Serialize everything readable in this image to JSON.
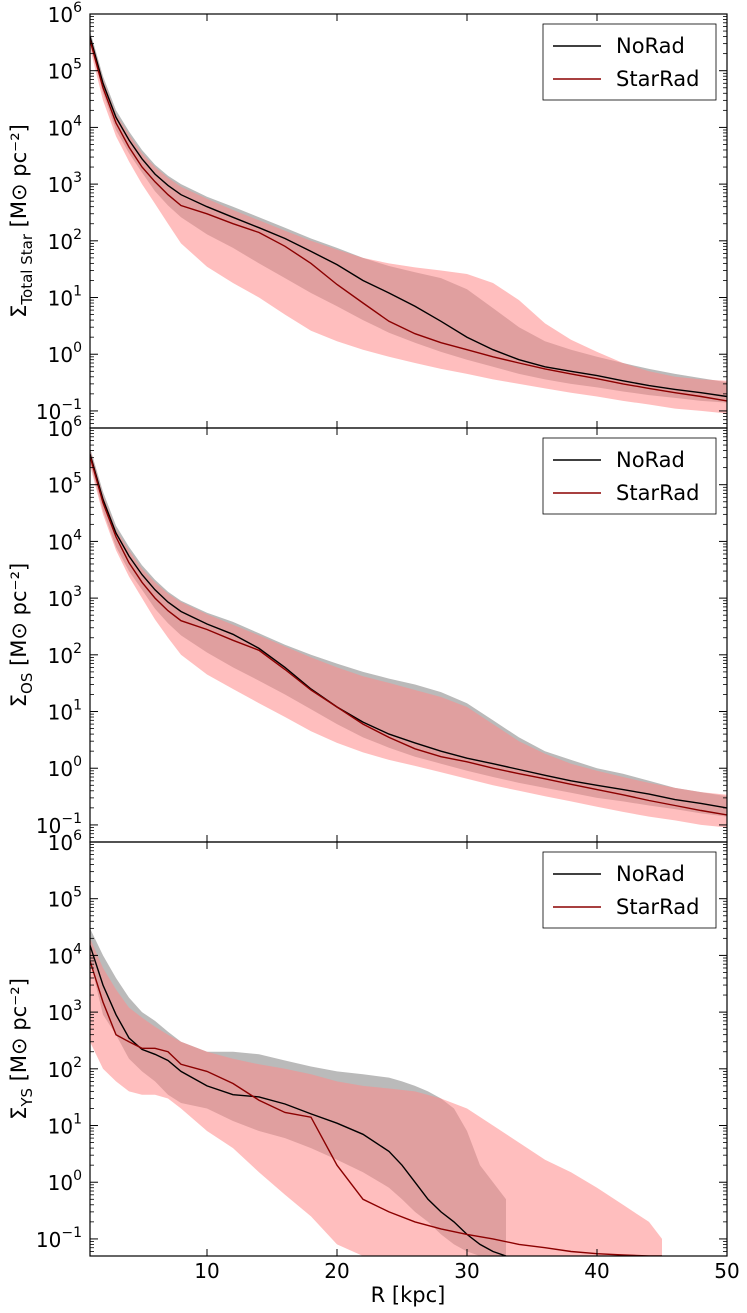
{
  "figure": {
    "xlabel": "R [kpc]"
  },
  "chart_data": [
    {
      "type": "line",
      "panel": "total",
      "ylabel_prefix": "Σ",
      "ylabel_subscript": "Total Star",
      "ylabel_unit": "[M⊙ pc⁻²]",
      "xlim": [
        1,
        50
      ],
      "ylim": [
        0.05,
        1000000
      ],
      "yscale": "log",
      "x_ticks": [
        10,
        20,
        30,
        40,
        50
      ],
      "y_ticks": [
        {
          "base": "10",
          "exp": "−1",
          "value": 0.1
        },
        {
          "base": "10",
          "exp": "0",
          "value": 1
        },
        {
          "base": "10",
          "exp": "1",
          "value": 10
        },
        {
          "base": "10",
          "exp": "2",
          "value": 100
        },
        {
          "base": "10",
          "exp": "3",
          "value": 1000
        },
        {
          "base": "10",
          "exp": "4",
          "value": 10000
        },
        {
          "base": "10",
          "exp": "5",
          "value": 100000
        },
        {
          "base": "10",
          "exp": "6",
          "value": 1000000
        }
      ],
      "legend": [
        {
          "label": "NoRad",
          "color": "#000000"
        },
        {
          "label": "StarRad",
          "color": "#8b0000"
        }
      ],
      "legend_position": "top-right",
      "series": [
        {
          "name": "NoRad",
          "color": "#000000",
          "band_color": "#a9a9a9",
          "x": [
            1,
            2,
            3,
            4,
            5,
            6,
            7,
            8,
            10,
            12,
            14,
            16,
            18,
            20,
            22,
            24,
            26,
            28,
            30,
            32,
            34,
            36,
            38,
            40,
            42,
            44,
            46,
            48,
            50
          ],
          "y": [
            400000,
            60000,
            15000,
            6000,
            2800,
            1500,
            950,
            650,
            400,
            260,
            170,
            110,
            65,
            38,
            20,
            12,
            7,
            3.8,
            2,
            1.2,
            0.8,
            0.6,
            0.5,
            0.42,
            0.34,
            0.28,
            0.24,
            0.21,
            0.18
          ],
          "y_low": [
            300000,
            40000,
            9000,
            3500,
            1600,
            750,
            420,
            260,
            130,
            75,
            40,
            22,
            12,
            7,
            4,
            2.4,
            1.6,
            1.1,
            0.8,
            0.6,
            0.45,
            0.36,
            0.3,
            0.26,
            0.22,
            0.19,
            0.17,
            0.15,
            0.14
          ],
          "y_high": [
            500000,
            80000,
            20000,
            8500,
            4000,
            2200,
            1400,
            1000,
            600,
            400,
            260,
            170,
            110,
            75,
            50,
            36,
            28,
            22,
            14,
            6.5,
            3,
            1.7,
            1.2,
            0.9,
            0.7,
            0.55,
            0.45,
            0.38,
            0.32
          ]
        },
        {
          "name": "StarRad",
          "color": "#8b0000",
          "band_color": "#ff8888",
          "x": [
            1,
            2,
            3,
            4,
            5,
            6,
            7,
            8,
            10,
            12,
            14,
            16,
            18,
            20,
            22,
            24,
            26,
            28,
            30,
            32,
            34,
            36,
            38,
            40,
            42,
            44,
            46,
            48,
            50
          ],
          "y": [
            350000,
            50000,
            12000,
            4500,
            2000,
            1100,
            650,
            420,
            300,
            200,
            140,
            80,
            40,
            17,
            8,
            3.8,
            2.3,
            1.6,
            1.2,
            0.9,
            0.7,
            0.55,
            0.45,
            0.37,
            0.3,
            0.25,
            0.21,
            0.18,
            0.15
          ],
          "y_low": [
            250000,
            30000,
            7000,
            2500,
            1000,
            450,
            200,
            90,
            35,
            18,
            10,
            5,
            2.6,
            1.7,
            1.2,
            0.9,
            0.7,
            0.55,
            0.45,
            0.36,
            0.3,
            0.25,
            0.21,
            0.18,
            0.15,
            0.13,
            0.11,
            0.1,
            0.09
          ],
          "y_high": [
            450000,
            70000,
            17000,
            7500,
            3500,
            2000,
            1300,
            900,
            550,
            350,
            230,
            150,
            100,
            70,
            50,
            40,
            34,
            30,
            26,
            18,
            9,
            3.5,
            1.8,
            1.1,
            0.7,
            0.5,
            0.4,
            0.36,
            0.34
          ]
        }
      ]
    },
    {
      "type": "line",
      "panel": "old",
      "ylabel_prefix": "Σ",
      "ylabel_subscript": "OS",
      "ylabel_unit": "[M⊙ pc⁻²]",
      "xlim": [
        1,
        50
      ],
      "ylim": [
        0.05,
        1000000
      ],
      "yscale": "log",
      "x_ticks": [
        10,
        20,
        30,
        40,
        50
      ],
      "y_ticks": [
        {
          "base": "10",
          "exp": "−1",
          "value": 0.1
        },
        {
          "base": "10",
          "exp": "0",
          "value": 1
        },
        {
          "base": "10",
          "exp": "1",
          "value": 10
        },
        {
          "base": "10",
          "exp": "2",
          "value": 100
        },
        {
          "base": "10",
          "exp": "3",
          "value": 1000
        },
        {
          "base": "10",
          "exp": "4",
          "value": 10000
        },
        {
          "base": "10",
          "exp": "5",
          "value": 100000
        },
        {
          "base": "10",
          "exp": "6",
          "value": 1000000
        }
      ],
      "legend": [
        {
          "label": "NoRad",
          "color": "#000000"
        },
        {
          "label": "StarRad",
          "color": "#8b0000"
        }
      ],
      "legend_position": "top-right",
      "series": [
        {
          "name": "NoRad",
          "color": "#000000",
          "band_color": "#a9a9a9",
          "x": [
            1,
            2,
            3,
            4,
            5,
            6,
            7,
            8,
            10,
            12,
            14,
            16,
            18,
            20,
            22,
            24,
            26,
            28,
            30,
            32,
            34,
            36,
            38,
            40,
            42,
            44,
            46,
            48,
            50
          ],
          "y": [
            350000,
            55000,
            14000,
            5500,
            2600,
            1400,
            850,
            580,
            350,
            230,
            130,
            60,
            25,
            12,
            6.5,
            4,
            2.8,
            2,
            1.5,
            1.2,
            0.95,
            0.75,
            0.6,
            0.5,
            0.42,
            0.35,
            0.28,
            0.24,
            0.2
          ],
          "y_low": [
            250000,
            35000,
            8000,
            3000,
            1400,
            650,
            360,
            220,
            110,
            60,
            35,
            20,
            11,
            6,
            3.5,
            2.3,
            1.6,
            1.2,
            0.9,
            0.7,
            0.55,
            0.45,
            0.37,
            0.3,
            0.26,
            0.22,
            0.19,
            0.16,
            0.14
          ],
          "y_high": [
            450000,
            75000,
            19000,
            8000,
            3800,
            2100,
            1300,
            900,
            550,
            380,
            240,
            150,
            100,
            70,
            50,
            38,
            30,
            22,
            14,
            7,
            3.5,
            2,
            1.4,
            1,
            0.8,
            0.6,
            0.45,
            0.38,
            0.32
          ]
        },
        {
          "name": "StarRad",
          "color": "#8b0000",
          "band_color": "#ff8888",
          "x": [
            1,
            2,
            3,
            4,
            5,
            6,
            7,
            8,
            10,
            12,
            14,
            16,
            18,
            20,
            22,
            24,
            26,
            28,
            30,
            32,
            34,
            36,
            38,
            40,
            42,
            44,
            46,
            48,
            50
          ],
          "y": [
            320000,
            48000,
            12000,
            4200,
            1900,
            1000,
            600,
            400,
            280,
            180,
            120,
            55,
            24,
            12,
            6,
            3.5,
            2.2,
            1.6,
            1.3,
            1,
            0.8,
            0.65,
            0.52,
            0.42,
            0.34,
            0.27,
            0.22,
            0.18,
            0.15
          ],
          "y_low": [
            220000,
            30000,
            7000,
            2400,
            1000,
            420,
            200,
            100,
            45,
            25,
            14,
            8,
            4.5,
            2.8,
            1.9,
            1.4,
            1.1,
            0.85,
            0.65,
            0.5,
            0.4,
            0.32,
            0.26,
            0.21,
            0.17,
            0.14,
            0.12,
            0.1,
            0.09
          ],
          "y_high": [
            420000,
            65000,
            16000,
            7000,
            3300,
            1900,
            1200,
            850,
            520,
            340,
            220,
            140,
            90,
            60,
            42,
            32,
            24,
            18,
            12,
            6,
            3,
            1.8,
            1.2,
            0.9,
            0.7,
            0.55,
            0.45,
            0.38,
            0.34
          ]
        }
      ]
    },
    {
      "type": "line",
      "panel": "young",
      "ylabel_prefix": "Σ",
      "ylabel_subscript": "YS",
      "ylabel_unit": "[M⊙ pc⁻²]",
      "xlim": [
        1,
        50
      ],
      "ylim": [
        0.05,
        1000000
      ],
      "yscale": "log",
      "x_ticks": [
        10,
        20,
        30,
        40,
        50
      ],
      "y_ticks": [
        {
          "base": "10",
          "exp": "−1",
          "value": 0.1
        },
        {
          "base": "10",
          "exp": "0",
          "value": 1
        },
        {
          "base": "10",
          "exp": "1",
          "value": 10
        },
        {
          "base": "10",
          "exp": "2",
          "value": 100
        },
        {
          "base": "10",
          "exp": "3",
          "value": 1000
        },
        {
          "base": "10",
          "exp": "4",
          "value": 10000
        },
        {
          "base": "10",
          "exp": "5",
          "value": 100000
        },
        {
          "base": "10",
          "exp": "6",
          "value": 1000000
        }
      ],
      "legend": [
        {
          "label": "NoRad",
          "color": "#000000"
        },
        {
          "label": "StarRad",
          "color": "#8b0000"
        }
      ],
      "legend_position": "top-right",
      "series": [
        {
          "name": "NoRad",
          "color": "#000000",
          "band_color": "#a9a9a9",
          "x": [
            1,
            2,
            3,
            4,
            5,
            6,
            7,
            8,
            10,
            12,
            14,
            16,
            18,
            20,
            22,
            24,
            25,
            26,
            27,
            28,
            29,
            30,
            31,
            32,
            33
          ],
          "y": [
            15000,
            3000,
            900,
            350,
            220,
            180,
            140,
            90,
            50,
            35,
            32,
            24,
            16,
            11,
            7,
            3.5,
            2,
            1,
            0.5,
            0.3,
            0.2,
            0.12,
            0.08,
            0.06,
            0.05
          ],
          "y_low": [
            8000,
            900,
            400,
            150,
            90,
            60,
            35,
            25,
            20,
            12,
            8,
            6,
            4,
            2.5,
            1.5,
            0.8,
            0.5,
            0.3,
            0.2,
            0.12,
            0.08,
            0.06,
            0.05,
            0.05,
            0.05
          ],
          "y_high": [
            30000,
            10000,
            4000,
            1800,
            1000,
            700,
            450,
            300,
            200,
            200,
            180,
            140,
            110,
            90,
            80,
            70,
            60,
            50,
            40,
            30,
            20,
            8,
            2,
            1,
            0.5
          ]
        },
        {
          "name": "StarRad",
          "color": "#8b0000",
          "band_color": "#ff8888",
          "x": [
            1,
            2,
            3,
            4,
            5,
            6,
            7,
            8,
            10,
            12,
            14,
            16,
            18,
            20,
            22,
            24,
            26,
            28,
            30,
            32,
            34,
            36,
            38,
            40,
            42,
            44,
            45
          ],
          "y": [
            8000,
            1500,
            400,
            300,
            230,
            230,
            200,
            120,
            90,
            55,
            28,
            17,
            14,
            2,
            0.5,
            0.3,
            0.2,
            0.15,
            0.12,
            0.1,
            0.08,
            0.07,
            0.06,
            0.055,
            0.052,
            0.05,
            0.05
          ],
          "y_low": [
            300,
            100,
            60,
            40,
            35,
            35,
            30,
            20,
            8,
            4,
            1.5,
            0.6,
            0.25,
            0.08,
            0.05,
            0.05,
            0.05,
            0.05,
            0.05,
            0.05,
            0.05,
            0.05,
            0.05,
            0.05,
            0.05,
            0.05,
            0.05
          ],
          "y_high": [
            20000,
            6000,
            2500,
            1200,
            800,
            550,
            400,
            300,
            200,
            150,
            120,
            100,
            80,
            60,
            50,
            45,
            40,
            30,
            20,
            10,
            5,
            2.5,
            1.5,
            0.8,
            0.4,
            0.2,
            0.1
          ]
        }
      ]
    }
  ]
}
